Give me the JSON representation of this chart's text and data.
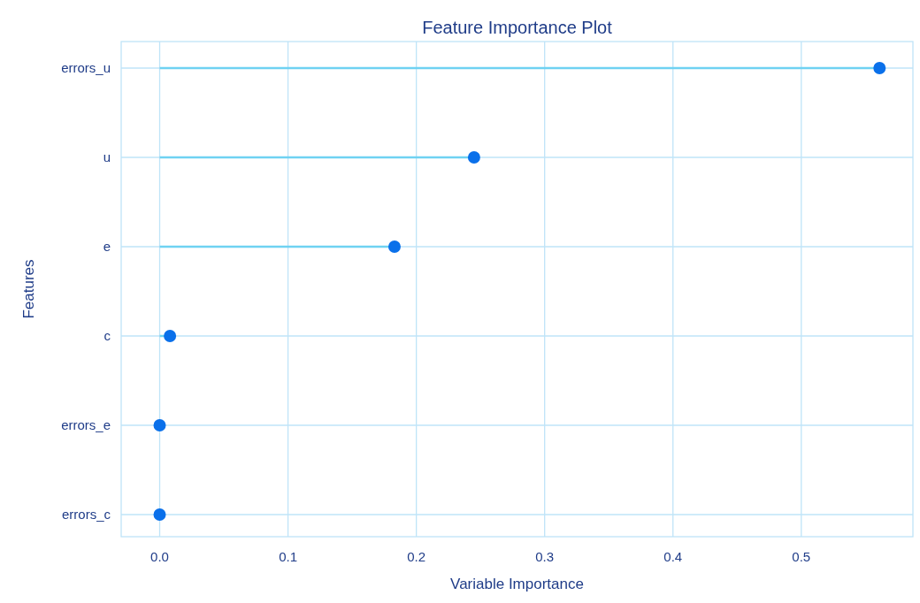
{
  "chart_data": {
    "type": "lollipop",
    "orientation": "horizontal",
    "title": "Feature Importance Plot",
    "xlabel": "Variable Importance",
    "ylabel": "Features",
    "categories": [
      "errors_u",
      "u",
      "e",
      "c",
      "errors_e",
      "errors_c"
    ],
    "values": [
      0.561,
      0.245,
      0.183,
      0.008,
      0,
      0
    ],
    "color": "#0a70ea",
    "marker": "circle",
    "grid": true,
    "xlim": [
      -0.03,
      0.587
    ],
    "xticks": [
      {
        "value": 0,
        "label": "0.0"
      },
      {
        "value": 0.1,
        "label": "0.1"
      },
      {
        "value": 0.2,
        "label": "0.2"
      },
      {
        "value": 0.3,
        "label": "0.3"
      },
      {
        "value": 0.4,
        "label": "0.4"
      },
      {
        "value": 0.5,
        "label": "0.5"
      }
    ]
  }
}
